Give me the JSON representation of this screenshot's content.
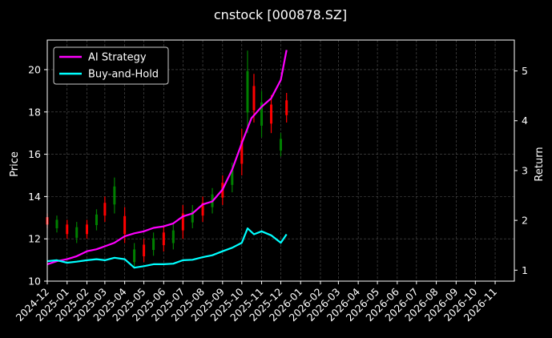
{
  "chart_data": {
    "type": "line",
    "title": "cnstock [000878.SZ]",
    "xlabel": "",
    "ylabel": "Price",
    "y2label": "Return",
    "x_ticks": [
      "2024-12",
      "2025-01",
      "2025-02",
      "2025-03",
      "2025-04",
      "2025-05",
      "2025-06",
      "2025-07",
      "2025-08",
      "2025-09",
      "2025-10",
      "2025-11",
      "2025-12",
      "2026-01",
      "2026-02",
      "2026-03",
      "2026-04",
      "2026-05",
      "2026-06",
      "2026-07",
      "2026-08",
      "2026-09",
      "2026-10",
      "2026-11"
    ],
    "xlim": [
      "2024-12-01",
      "2026-12-01"
    ],
    "ylim": [
      10,
      21.4
    ],
    "y_ticks": [
      10,
      12,
      14,
      16,
      18,
      20
    ],
    "y2lim": [
      0.78,
      5.62
    ],
    "y2_ticks": [
      1,
      2,
      3,
      4,
      5
    ],
    "grid": true,
    "legend_position": "top-left",
    "legend": [
      "AI Strategy",
      "Buy-and-Hold"
    ],
    "candlestick_colors": {
      "up": "#ff0000",
      "down": "#008000"
    },
    "price_candles": [
      {
        "date": "2024-12-01",
        "low": 12.5,
        "high": 13.2
      },
      {
        "date": "2024-12-16",
        "low": 12.3,
        "high": 13.1
      },
      {
        "date": "2025-01-01",
        "low": 12.0,
        "high": 12.9
      },
      {
        "date": "2025-01-16",
        "low": 11.8,
        "high": 12.8
      },
      {
        "date": "2025-02-01",
        "low": 12.0,
        "high": 12.9
      },
      {
        "date": "2025-02-16",
        "low": 12.4,
        "high": 13.4
      },
      {
        "date": "2025-03-01",
        "low": 12.8,
        "high": 14.0
      },
      {
        "date": "2025-03-16",
        "low": 13.2,
        "high": 14.9
      },
      {
        "date": "2025-04-01",
        "low": 11.8,
        "high": 13.5
      },
      {
        "date": "2025-04-16",
        "low": 10.6,
        "high": 11.8
      },
      {
        "date": "2025-05-01",
        "low": 10.9,
        "high": 12.0
      },
      {
        "date": "2025-05-16",
        "low": 11.2,
        "high": 12.3
      },
      {
        "date": "2025-06-01",
        "low": 11.4,
        "high": 12.6
      },
      {
        "date": "2025-06-16",
        "low": 11.5,
        "high": 12.7
      },
      {
        "date": "2025-07-01",
        "low": 12.0,
        "high": 13.6
      },
      {
        "date": "2025-07-16",
        "low": 12.5,
        "high": 13.6
      },
      {
        "date": "2025-08-01",
        "low": 12.8,
        "high": 14.0
      },
      {
        "date": "2025-08-16",
        "low": 13.2,
        "high": 14.4
      },
      {
        "date": "2025-09-01",
        "low": 13.6,
        "high": 15.0
      },
      {
        "date": "2025-09-16",
        "low": 14.2,
        "high": 15.6
      },
      {
        "date": "2025-10-01",
        "low": 15.0,
        "high": 17.2
      },
      {
        "date": "2025-10-10",
        "low": 17.0,
        "high": 20.9
      },
      {
        "date": "2025-10-20",
        "low": 17.5,
        "high": 19.8
      },
      {
        "date": "2025-11-01",
        "low": 16.8,
        "high": 19.0
      },
      {
        "date": "2025-11-16",
        "low": 17.0,
        "high": 18.8
      },
      {
        "date": "2025-12-01",
        "low": 15.9,
        "high": 17.0
      },
      {
        "date": "2025-12-10",
        "low": 17.5,
        "high": 18.9
      }
    ],
    "series": [
      {
        "name": "AI Strategy",
        "color": "#ff00ff",
        "points": [
          [
            "2024-12-01",
            1.12
          ],
          [
            "2024-12-16",
            1.18
          ],
          [
            "2025-01-01",
            1.22
          ],
          [
            "2025-01-16",
            1.28
          ],
          [
            "2025-02-01",
            1.38
          ],
          [
            "2025-02-16",
            1.42
          ],
          [
            "2025-03-01",
            1.48
          ],
          [
            "2025-03-16",
            1.55
          ],
          [
            "2025-04-01",
            1.68
          ],
          [
            "2025-04-16",
            1.74
          ],
          [
            "2025-05-01",
            1.78
          ],
          [
            "2025-05-16",
            1.85
          ],
          [
            "2025-06-01",
            1.88
          ],
          [
            "2025-06-16",
            1.94
          ],
          [
            "2025-07-01",
            2.08
          ],
          [
            "2025-07-16",
            2.14
          ],
          [
            "2025-08-01",
            2.32
          ],
          [
            "2025-08-16",
            2.38
          ],
          [
            "2025-09-01",
            2.62
          ],
          [
            "2025-09-16",
            3.02
          ],
          [
            "2025-10-01",
            3.55
          ],
          [
            "2025-10-16",
            4.05
          ],
          [
            "2025-11-01",
            4.28
          ],
          [
            "2025-11-16",
            4.45
          ],
          [
            "2025-12-01",
            4.82
          ],
          [
            "2025-12-10",
            5.42
          ]
        ]
      },
      {
        "name": "Buy-and-Hold",
        "color": "#00ffff",
        "points": [
          [
            "2024-12-01",
            1.18
          ],
          [
            "2024-12-16",
            1.2
          ],
          [
            "2025-01-01",
            1.15
          ],
          [
            "2025-01-16",
            1.17
          ],
          [
            "2025-02-01",
            1.2
          ],
          [
            "2025-02-16",
            1.22
          ],
          [
            "2025-03-01",
            1.2
          ],
          [
            "2025-03-16",
            1.25
          ],
          [
            "2025-04-01",
            1.22
          ],
          [
            "2025-04-16",
            1.05
          ],
          [
            "2025-05-01",
            1.08
          ],
          [
            "2025-05-16",
            1.12
          ],
          [
            "2025-06-01",
            1.12
          ],
          [
            "2025-06-16",
            1.13
          ],
          [
            "2025-07-01",
            1.2
          ],
          [
            "2025-07-16",
            1.21
          ],
          [
            "2025-08-01",
            1.26
          ],
          [
            "2025-08-16",
            1.3
          ],
          [
            "2025-09-01",
            1.38
          ],
          [
            "2025-09-16",
            1.45
          ],
          [
            "2025-10-01",
            1.55
          ],
          [
            "2025-10-10",
            1.84
          ],
          [
            "2025-10-20",
            1.72
          ],
          [
            "2025-11-01",
            1.78
          ],
          [
            "2025-11-16",
            1.7
          ],
          [
            "2025-12-01",
            1.55
          ],
          [
            "2025-12-10",
            1.72
          ]
        ]
      }
    ]
  }
}
